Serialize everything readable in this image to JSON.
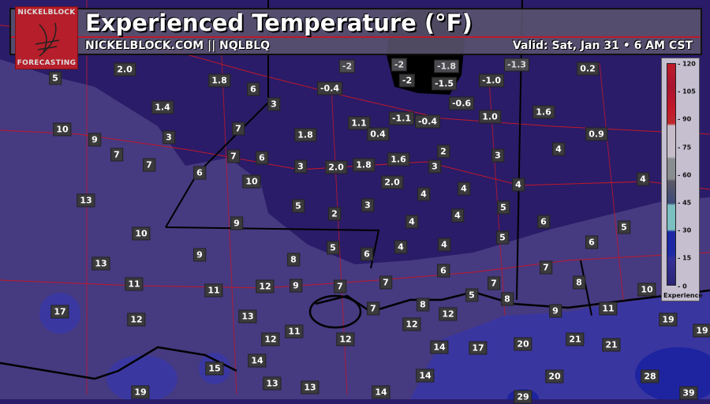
{
  "header": {
    "title": "Experienced Temperature (°F)",
    "subtitle": "NICKELBLOCK.COM || NQLBLQ",
    "valid": "Valid: Sat, Jan 31 • 6 AM CST"
  },
  "logo": {
    "top": "NICKELBLOCK",
    "bottom": "FORECASTING"
  },
  "legend": {
    "title": "Experience",
    "ticks": [
      "120",
      "105",
      "90",
      "75",
      "60",
      "45",
      "30",
      "15",
      "0"
    ],
    "colors": [
      "#c01b2a",
      "#c7bcc9",
      "#8a8d90",
      "#5e5868",
      "#3d4a78",
      "#7bbfc0",
      "#1c28a4",
      "#2c2474"
    ]
  },
  "colors": {
    "cold_zone": "#000000",
    "northern_fill": "#2a1c68",
    "southern_fill": "#463a80",
    "gulf_fill": "#3a36a0",
    "roads": "#c0182a"
  },
  "labels": [
    "5",
    "2.0",
    "1.8",
    "6",
    "-0.4",
    "-2",
    "-1.5",
    "-1.0",
    "0.2",
    "1.4",
    "3",
    "-0.6",
    "1.6",
    "10",
    "7",
    "1.1",
    "-1.1",
    "-0.4",
    "1.0",
    "9",
    "3",
    "1.8",
    "0.4",
    "0.9",
    "7",
    "7",
    "6",
    "2",
    "3",
    "4",
    "7",
    "3",
    "2.0",
    "1.8",
    "1.6",
    "3",
    "6",
    "10",
    "2.0",
    "4",
    "4",
    "4",
    "4",
    "13",
    "5",
    "2",
    "3",
    "5",
    "4",
    "9",
    "4",
    "6",
    "10",
    "5",
    "5",
    "4",
    "4",
    "5",
    "6",
    "9",
    "8",
    "6",
    "13",
    "6",
    "7",
    "7",
    "11",
    "11",
    "12",
    "9",
    "7",
    "7",
    "8",
    "5",
    "8",
    "10",
    "17",
    "7",
    "8",
    "12",
    "13",
    "11",
    "12",
    "12",
    "12",
    "12",
    "9",
    "11",
    "19",
    "19",
    "14",
    "14",
    "17",
    "20",
    "21",
    "21",
    "15",
    "13",
    "13",
    "14",
    "20",
    "28",
    "19",
    "14",
    "29",
    "39"
  ],
  "faded_labels": [
    "-2",
    "-2",
    "-1.8",
    "-1.3"
  ]
}
